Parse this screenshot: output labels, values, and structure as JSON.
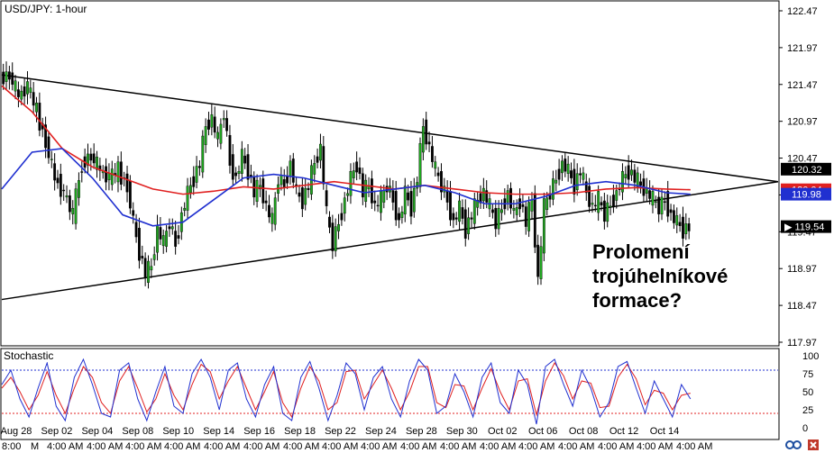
{
  "chart_data": {
    "type": "candlestick",
    "title": "USD/JPY: 1-hour",
    "symbol_label": "USD/JPY: 1-hour",
    "y_ticks": [
      "122.47",
      "121.97",
      "121.47",
      "120.97",
      "120.47",
      "119.97",
      "119.47",
      "118.97",
      "118.47",
      "117.97"
    ],
    "ylim": [
      117.97,
      122.47
    ],
    "x_date_labels": [
      "Aug 28",
      "Sep 02",
      "Sep 04",
      "Sep 08",
      "Sep 10",
      "Sep 14",
      "Sep 16",
      "Sep 18",
      "Sep 22",
      "Sep 24",
      "Sep 28",
      "Sep 30",
      "Oct 02",
      "Oct 06",
      "Oct 08",
      "Oct 12",
      "Oct 14"
    ],
    "x_time_labels": [
      "8:00",
      "M",
      "4:00 AM",
      "4:00 AM",
      "4:00 AM",
      "4:00 AM",
      "4:00 AM",
      "4:00 AM",
      "4:00 AM",
      "4:00 AM",
      "4:00 AM",
      "4:00 AM",
      "4:00 AM",
      "4:00 AM",
      "4:00 AM",
      "4:00 AM",
      "4:00 AM",
      "4:00 AM",
      "4:00 AM"
    ],
    "price_badges": [
      {
        "value": "120.32",
        "style": "dark"
      },
      {
        "value": "120.04",
        "style": "red"
      },
      {
        "value": "119.98",
        "style": "blue"
      },
      {
        "value": "119.54",
        "style": "black"
      }
    ],
    "close_path": [
      [
        0,
        121.55
      ],
      [
        3,
        121.6
      ],
      [
        6,
        121.3
      ],
      [
        9,
        121.45
      ],
      [
        12,
        121.1
      ],
      [
        15,
        120.7
      ],
      [
        18,
        120.2
      ],
      [
        21,
        120.0
      ],
      [
        24,
        119.7
      ],
      [
        27,
        120.4
      ],
      [
        30,
        120.5
      ],
      [
        33,
        120.3
      ],
      [
        36,
        120.2
      ],
      [
        39,
        120.3
      ],
      [
        42,
        120.1
      ],
      [
        44,
        119.6
      ],
      [
        46,
        119.2
      ],
      [
        48,
        118.9
      ],
      [
        50,
        119.0
      ],
      [
        52,
        119.5
      ],
      [
        54,
        119.3
      ],
      [
        56,
        119.6
      ],
      [
        58,
        119.3
      ],
      [
        60,
        119.7
      ],
      [
        62,
        120.0
      ],
      [
        64,
        120.2
      ],
      [
        66,
        120.4
      ],
      [
        68,
        120.9
      ],
      [
        70,
        121.0
      ],
      [
        72,
        120.7
      ],
      [
        74,
        121.1
      ],
      [
        76,
        120.4
      ],
      [
        78,
        120.2
      ],
      [
        80,
        120.5
      ],
      [
        82,
        120.3
      ],
      [
        84,
        120.0
      ],
      [
        86,
        120.1
      ],
      [
        88,
        119.8
      ],
      [
        90,
        119.6
      ],
      [
        92,
        120.2
      ],
      [
        94,
        120.1
      ],
      [
        96,
        120.4
      ],
      [
        98,
        120.0
      ],
      [
        100,
        119.9
      ],
      [
        102,
        120.1
      ],
      [
        104,
        120.4
      ],
      [
        106,
        120.6
      ],
      [
        108,
        119.7
      ],
      [
        110,
        119.3
      ],
      [
        112,
        119.6
      ],
      [
        114,
        119.9
      ],
      [
        116,
        120.2
      ],
      [
        118,
        120.4
      ],
      [
        120,
        120.0
      ],
      [
        122,
        120.1
      ],
      [
        124,
        119.8
      ],
      [
        126,
        119.9
      ],
      [
        128,
        120.1
      ],
      [
        130,
        119.9
      ],
      [
        132,
        119.6
      ],
      [
        134,
        120.0
      ],
      [
        136,
        119.8
      ],
      [
        138,
        120.2
      ],
      [
        140,
        120.9
      ],
      [
        142,
        120.6
      ],
      [
        144,
        120.3
      ],
      [
        146,
        120.1
      ],
      [
        148,
        119.9
      ],
      [
        150,
        119.6
      ],
      [
        152,
        119.8
      ],
      [
        154,
        119.5
      ],
      [
        156,
        119.7
      ],
      [
        158,
        119.9
      ],
      [
        160,
        120.0
      ],
      [
        162,
        119.8
      ],
      [
        164,
        119.6
      ],
      [
        166,
        119.8
      ],
      [
        168,
        120.0
      ],
      [
        170,
        119.7
      ],
      [
        172,
        119.9
      ],
      [
        174,
        119.6
      ],
      [
        176,
        119.9
      ],
      [
        178,
        118.8
      ],
      [
        180,
        119.8
      ],
      [
        182,
        120.0
      ],
      [
        184,
        120.2
      ],
      [
        186,
        120.4
      ],
      [
        188,
        120.3
      ],
      [
        190,
        120.1
      ],
      [
        192,
        120.3
      ],
      [
        194,
        120.0
      ],
      [
        196,
        119.8
      ],
      [
        198,
        119.9
      ],
      [
        200,
        119.7
      ],
      [
        202,
        119.85
      ],
      [
        204,
        120.0
      ],
      [
        206,
        120.2
      ],
      [
        208,
        120.3
      ],
      [
        210,
        120.2
      ],
      [
        212,
        120.1
      ],
      [
        214,
        120.0
      ],
      [
        216,
        119.9
      ],
      [
        218,
        119.8
      ],
      [
        220,
        119.9
      ],
      [
        222,
        119.7
      ],
      [
        224,
        119.6
      ],
      [
        226,
        119.5
      ],
      [
        228,
        119.54
      ]
    ],
    "ema_red": [
      [
        0,
        121.45
      ],
      [
        10,
        121.1
      ],
      [
        20,
        120.6
      ],
      [
        30,
        120.35
      ],
      [
        40,
        120.2
      ],
      [
        50,
        120.05
      ],
      [
        60,
        119.98
      ],
      [
        70,
        120.02
      ],
      [
        80,
        120.08
      ],
      [
        90,
        120.05
      ],
      [
        100,
        120.1
      ],
      [
        110,
        120.15
      ],
      [
        120,
        120.1
      ],
      [
        130,
        120.05
      ],
      [
        140,
        120.1
      ],
      [
        150,
        120.05
      ],
      [
        160,
        120.0
      ],
      [
        170,
        119.98
      ],
      [
        180,
        119.98
      ],
      [
        190,
        120.0
      ],
      [
        200,
        120.05
      ],
      [
        210,
        120.07
      ],
      [
        220,
        120.05
      ],
      [
        228,
        120.04
      ]
    ],
    "ema_blue": [
      [
        0,
        120.05
      ],
      [
        10,
        120.55
      ],
      [
        20,
        120.6
      ],
      [
        30,
        120.2
      ],
      [
        40,
        119.7
      ],
      [
        50,
        119.55
      ],
      [
        60,
        119.6
      ],
      [
        70,
        119.9
      ],
      [
        80,
        120.2
      ],
      [
        90,
        120.25
      ],
      [
        100,
        120.2
      ],
      [
        110,
        120.1
      ],
      [
        120,
        120.0
      ],
      [
        130,
        120.05
      ],
      [
        140,
        120.1
      ],
      [
        150,
        120.0
      ],
      [
        160,
        119.85
      ],
      [
        170,
        119.85
      ],
      [
        180,
        119.95
      ],
      [
        190,
        120.1
      ],
      [
        200,
        120.15
      ],
      [
        210,
        120.1
      ],
      [
        220,
        120.0
      ],
      [
        228,
        119.98
      ]
    ],
    "triangle_upper": [
      [
        0,
        121.6
      ],
      [
        257,
        120.15
      ]
    ],
    "triangle_lower": [
      [
        0,
        118.55
      ],
      [
        257,
        120.15
      ]
    ],
    "annotation_lines": [
      "Prolomení",
      "trojúhelníkové",
      "formace?"
    ],
    "stochastic": {
      "label": "Stochastic",
      "ticks": [
        "100",
        "75",
        "50",
        "25",
        "0"
      ],
      "ylim": [
        0,
        100
      ],
      "levels": [
        80,
        20
      ],
      "k": [
        [
          0,
          60
        ],
        [
          3,
          80
        ],
        [
          6,
          40
        ],
        [
          9,
          15
        ],
        [
          12,
          55
        ],
        [
          15,
          90
        ],
        [
          18,
          30
        ],
        [
          21,
          10
        ],
        [
          24,
          70
        ],
        [
          27,
          95
        ],
        [
          30,
          60
        ],
        [
          33,
          20
        ],
        [
          36,
          15
        ],
        [
          39,
          80
        ],
        [
          42,
          90
        ],
        [
          45,
          40
        ],
        [
          48,
          10
        ],
        [
          51,
          50
        ],
        [
          54,
          85
        ],
        [
          57,
          30
        ],
        [
          60,
          20
        ],
        [
          63,
          75
        ],
        [
          66,
          95
        ],
        [
          69,
          70
        ],
        [
          72,
          25
        ],
        [
          75,
          80
        ],
        [
          78,
          90
        ],
        [
          81,
          40
        ],
        [
          84,
          15
        ],
        [
          87,
          60
        ],
        [
          90,
          85
        ],
        [
          93,
          20
        ],
        [
          96,
          10
        ],
        [
          99,
          70
        ],
        [
          102,
          92
        ],
        [
          105,
          55
        ],
        [
          108,
          10
        ],
        [
          111,
          45
        ],
        [
          114,
          90
        ],
        [
          117,
          75
        ],
        [
          120,
          25
        ],
        [
          123,
          70
        ],
        [
          126,
          85
        ],
        [
          129,
          40
        ],
        [
          132,
          15
        ],
        [
          135,
          65
        ],
        [
          138,
          95
        ],
        [
          141,
          80
        ],
        [
          144,
          20
        ],
        [
          147,
          30
        ],
        [
          150,
          75
        ],
        [
          153,
          50
        ],
        [
          156,
          15
        ],
        [
          159,
          70
        ],
        [
          162,
          90
        ],
        [
          165,
          35
        ],
        [
          168,
          20
        ],
        [
          171,
          80
        ],
        [
          174,
          60
        ],
        [
          177,
          5
        ],
        [
          180,
          85
        ],
        [
          183,
          95
        ],
        [
          186,
          60
        ],
        [
          189,
          30
        ],
        [
          192,
          80
        ],
        [
          195,
          55
        ],
        [
          198,
          15
        ],
        [
          201,
          35
        ],
        [
          204,
          85
        ],
        [
          207,
          92
        ],
        [
          210,
          55
        ],
        [
          213,
          20
        ],
        [
          216,
          65
        ],
        [
          219,
          40
        ],
        [
          222,
          15
        ],
        [
          225,
          60
        ],
        [
          228,
          40
        ]
      ],
      "d": [
        [
          0,
          55
        ],
        [
          3,
          70
        ],
        [
          6,
          50
        ],
        [
          9,
          25
        ],
        [
          12,
          45
        ],
        [
          15,
          78
        ],
        [
          18,
          45
        ],
        [
          21,
          20
        ],
        [
          24,
          55
        ],
        [
          27,
          85
        ],
        [
          30,
          70
        ],
        [
          33,
          35
        ],
        [
          36,
          20
        ],
        [
          39,
          65
        ],
        [
          42,
          85
        ],
        [
          45,
          55
        ],
        [
          48,
          22
        ],
        [
          51,
          40
        ],
        [
          54,
          75
        ],
        [
          57,
          45
        ],
        [
          60,
          25
        ],
        [
          63,
          60
        ],
        [
          66,
          88
        ],
        [
          69,
          78
        ],
        [
          72,
          40
        ],
        [
          75,
          65
        ],
        [
          78,
          85
        ],
        [
          81,
          55
        ],
        [
          84,
          25
        ],
        [
          87,
          50
        ],
        [
          90,
          78
        ],
        [
          93,
          35
        ],
        [
          96,
          15
        ],
        [
          99,
          55
        ],
        [
          102,
          85
        ],
        [
          105,
          65
        ],
        [
          108,
          25
        ],
        [
          111,
          35
        ],
        [
          114,
          78
        ],
        [
          117,
          80
        ],
        [
          120,
          40
        ],
        [
          123,
          60
        ],
        [
          126,
          80
        ],
        [
          129,
          55
        ],
        [
          132,
          25
        ],
        [
          135,
          50
        ],
        [
          138,
          85
        ],
        [
          141,
          85
        ],
        [
          144,
          35
        ],
        [
          147,
          28
        ],
        [
          150,
          60
        ],
        [
          153,
          58
        ],
        [
          156,
          25
        ],
        [
          159,
          55
        ],
        [
          162,
          82
        ],
        [
          165,
          50
        ],
        [
          168,
          25
        ],
        [
          171,
          65
        ],
        [
          174,
          68
        ],
        [
          177,
          18
        ],
        [
          180,
          65
        ],
        [
          183,
          90
        ],
        [
          186,
          72
        ],
        [
          189,
          40
        ],
        [
          192,
          65
        ],
        [
          195,
          62
        ],
        [
          198,
          28
        ],
        [
          201,
          30
        ],
        [
          204,
          70
        ],
        [
          207,
          88
        ],
        [
          210,
          68
        ],
        [
          213,
          32
        ],
        [
          216,
          52
        ],
        [
          219,
          48
        ],
        [
          222,
          25
        ],
        [
          225,
          45
        ],
        [
          228,
          48
        ]
      ]
    }
  }
}
